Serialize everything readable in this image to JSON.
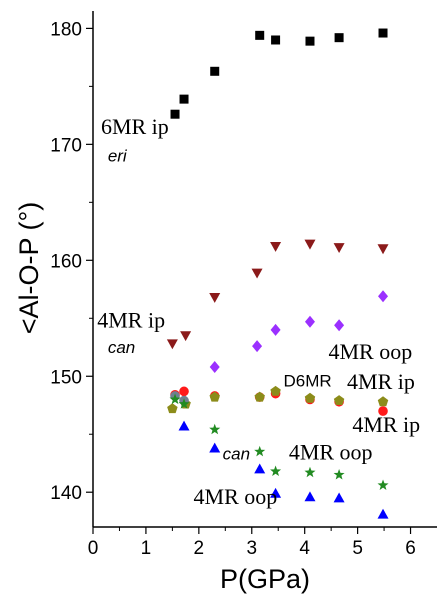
{
  "chart_data": {
    "type": "scatter",
    "xlabel": "P(GPa)",
    "ylabel": "<Al-O-P (°)",
    "xlim": [
      0,
      6.5
    ],
    "ylim": [
      137,
      181.5
    ],
    "x_ticks": [
      0,
      1,
      2,
      3,
      4,
      5,
      6
    ],
    "y_ticks": [
      140,
      150,
      160,
      170,
      180
    ],
    "grid": false,
    "series": [
      {
        "marker": "square",
        "color": "#000000",
        "points": [
          [
            1.55,
            172.6
          ],
          [
            1.72,
            173.9
          ],
          [
            2.3,
            176.3
          ],
          [
            3.15,
            179.4
          ],
          [
            3.45,
            179.0
          ],
          [
            4.1,
            178.9
          ],
          [
            4.65,
            179.2
          ],
          [
            5.48,
            179.6
          ]
        ]
      },
      {
        "marker": "triangle-down",
        "color": "#8b1a1a",
        "points": [
          [
            1.5,
            152.8
          ],
          [
            1.75,
            153.5
          ],
          [
            2.3,
            156.8
          ],
          [
            3.1,
            158.9
          ],
          [
            3.45,
            161.2
          ],
          [
            4.1,
            161.4
          ],
          [
            4.65,
            161.1
          ],
          [
            5.48,
            161.0
          ]
        ]
      },
      {
        "marker": "diamond",
        "color": "#9b30ff",
        "points": [
          [
            2.3,
            150.8
          ],
          [
            3.1,
            152.6
          ],
          [
            3.45,
            154.0
          ],
          [
            4.1,
            154.7
          ],
          [
            4.65,
            154.4
          ],
          [
            5.48,
            156.9
          ]
        ]
      },
      {
        "marker": "circle",
        "color": "#ff1a1a",
        "points": [
          [
            1.55,
            148.4
          ],
          [
            1.72,
            148.7
          ],
          [
            2.3,
            148.3
          ],
          [
            3.15,
            148.2
          ],
          [
            3.45,
            148.5
          ],
          [
            4.1,
            148.0
          ],
          [
            4.65,
            147.8
          ],
          [
            5.48,
            147.0
          ]
        ]
      },
      {
        "marker": "pentagon",
        "color": "#8c8c1a",
        "points": [
          [
            1.5,
            147.2
          ],
          [
            1.75,
            147.6
          ],
          [
            2.3,
            148.2
          ],
          [
            3.15,
            148.2
          ],
          [
            3.45,
            148.7
          ],
          [
            4.1,
            148.1
          ],
          [
            4.65,
            147.9
          ],
          [
            5.48,
            147.8
          ]
        ]
      },
      {
        "marker": "circle",
        "color": "#708090",
        "points": [
          [
            1.55,
            148.3
          ],
          [
            1.72,
            147.9
          ]
        ]
      },
      {
        "marker": "star",
        "color": "#228b22",
        "points": [
          [
            1.55,
            148.0
          ],
          [
            1.72,
            147.6
          ],
          [
            2.3,
            145.4
          ],
          [
            3.15,
            143.5
          ],
          [
            3.45,
            141.8
          ],
          [
            4.1,
            141.7
          ],
          [
            4.65,
            141.5
          ],
          [
            5.48,
            140.6
          ]
        ]
      },
      {
        "marker": "triangle-up",
        "color": "#0000ff",
        "points": [
          [
            1.72,
            145.7
          ],
          [
            2.3,
            143.8
          ],
          [
            3.15,
            142.0
          ],
          [
            3.45,
            139.9
          ],
          [
            4.1,
            139.6
          ],
          [
            4.65,
            139.5
          ],
          [
            5.48,
            138.1
          ]
        ]
      }
    ],
    "annotations": [
      {
        "text": "6MR ip",
        "x": 0.15,
        "y": 170.9,
        "style": "serif"
      },
      {
        "text": "eri",
        "x": 0.28,
        "y": 168.5,
        "style": "italic-sans"
      },
      {
        "text": "4MR ip",
        "x": 0.08,
        "y": 154.2,
        "style": "serif"
      },
      {
        "text": "can",
        "x": 0.28,
        "y": 152.0,
        "style": "italic-sans"
      },
      {
        "text": "4MR oop",
        "x": 4.45,
        "y": 151.5,
        "style": "serif"
      },
      {
        "text": "D6MR",
        "x": 3.6,
        "y": 149.1,
        "style": "sans"
      },
      {
        "text": "4MR ip",
        "x": 4.8,
        "y": 148.9,
        "style": "serif"
      },
      {
        "text": "4MR ip",
        "x": 4.9,
        "y": 145.2,
        "style": "serif"
      },
      {
        "text": "can",
        "x": 2.45,
        "y": 142.8,
        "style": "italic-sans"
      },
      {
        "text": "4MR oop",
        "x": 3.7,
        "y": 142.8,
        "style": "serif"
      },
      {
        "text": "4MR oop",
        "x": 1.9,
        "y": 139.0,
        "style": "serif"
      }
    ]
  }
}
